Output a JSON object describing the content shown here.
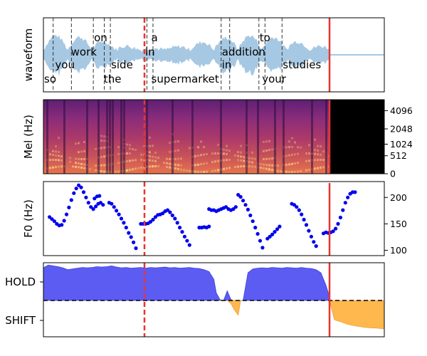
{
  "chart_data": [
    {
      "type": "line",
      "panel": "waveform",
      "ylabel": "waveform",
      "words": [
        {
          "text": "so",
          "t": 0.0,
          "row": 3
        },
        {
          "text": "you",
          "t": 0.9,
          "row": 2
        },
        {
          "text": "work",
          "t": 2.2,
          "row": 1
        },
        {
          "text": "on",
          "t": 4.1,
          "row": 0
        },
        {
          "text": "the",
          "t": 4.9,
          "row": 3
        },
        {
          "text": "side",
          "t": 5.5,
          "row": 2
        },
        {
          "text": "in",
          "t": 8.3,
          "row": 1
        },
        {
          "text": "a",
          "t": 8.8,
          "row": 0
        },
        {
          "text": "supermarket",
          "t": 8.8,
          "row": 3
        },
        {
          "text": "in",
          "t": 14.6,
          "row": 2
        },
        {
          "text": "addition",
          "t": 14.6,
          "row": 1
        },
        {
          "text": "to",
          "t": 17.7,
          "row": 0
        },
        {
          "text": "your",
          "t": 17.9,
          "row": 3
        },
        {
          "text": "studies",
          "t": 19.6,
          "row": 2
        }
      ],
      "word_boundaries": [
        0.8,
        2.3,
        4.1,
        5.0,
        5.5,
        8.5,
        9.0,
        14.6,
        15.3,
        17.7,
        18.2,
        19.6
      ],
      "current_time": 8.3,
      "end_time": 23.5,
      "x_range": [
        0,
        28.0
      ]
    },
    {
      "type": "heatmap",
      "panel": "mel",
      "ylabel": "Mel (Hz)",
      "y_ticks": [
        "4096",
        "2048",
        "1024",
        "512",
        "0"
      ],
      "y_tick_hz": [
        4096,
        2048,
        1024,
        512,
        0
      ],
      "current_time": 8.3,
      "end_time": 23.5
    },
    {
      "type": "scatter",
      "panel": "f0",
      "ylabel": "F0 (Hz)",
      "ylim": [
        90,
        230
      ],
      "y_ticks": [
        "100",
        "150",
        "200"
      ],
      "y_tick_values": [
        100,
        150,
        200
      ],
      "segments": [
        [
          [
            0.5,
            163
          ],
          [
            0.7,
            159
          ],
          [
            0.9,
            155
          ],
          [
            1.1,
            150
          ],
          [
            1.3,
            147
          ],
          [
            1.5,
            148
          ],
          [
            1.7,
            156
          ],
          [
            1.9,
            168
          ],
          [
            2.1,
            181
          ],
          [
            2.3,
            195
          ],
          [
            2.5,
            208
          ],
          [
            2.7,
            217
          ],
          [
            2.9,
            223
          ],
          [
            3.1,
            219
          ],
          [
            3.3,
            210
          ],
          [
            3.5,
            200
          ],
          [
            3.7,
            190
          ],
          [
            3.9,
            182
          ],
          [
            4.1,
            178
          ],
          [
            4.3,
            183
          ],
          [
            4.5,
            188
          ],
          [
            4.7,
            190
          ],
          [
            4.9,
            186
          ]
        ],
        [
          [
            4.2,
            198
          ],
          [
            4.4,
            202
          ],
          [
            4.6,
            203
          ]
        ],
        [
          [
            5.4,
            190
          ],
          [
            5.6,
            188
          ],
          [
            5.8,
            182
          ],
          [
            6.0,
            175
          ],
          [
            6.2,
            168
          ],
          [
            6.4,
            160
          ],
          [
            6.6,
            152
          ],
          [
            6.8,
            143
          ],
          [
            7.0,
            133
          ],
          [
            7.2,
            125
          ],
          [
            7.4,
            115
          ],
          [
            7.6,
            104
          ]
        ],
        [
          [
            8.0,
            150
          ],
          [
            8.2,
            150
          ],
          [
            8.4,
            150
          ],
          [
            8.6,
            151
          ],
          [
            8.8,
            154
          ],
          [
            9.0,
            158
          ],
          [
            9.2,
            163
          ],
          [
            9.4,
            167
          ],
          [
            9.6,
            168
          ],
          [
            9.8,
            170
          ],
          [
            10.0,
            174
          ],
          [
            10.2,
            176
          ],
          [
            10.4,
            172
          ],
          [
            10.6,
            166
          ],
          [
            10.8,
            160
          ],
          [
            11.0,
            152
          ],
          [
            11.2,
            143
          ],
          [
            11.4,
            135
          ],
          [
            11.6,
            126
          ],
          [
            11.8,
            118
          ],
          [
            12.0,
            110
          ]
        ],
        [
          [
            12.8,
            143
          ],
          [
            13.0,
            143
          ],
          [
            13.2,
            144
          ],
          [
            13.4,
            143
          ],
          [
            13.6,
            145
          ]
        ],
        [
          [
            13.6,
            178
          ],
          [
            13.8,
            176
          ],
          [
            14.0,
            176
          ],
          [
            14.2,
            174
          ],
          [
            14.4,
            176
          ],
          [
            14.6,
            178
          ],
          [
            14.8,
            180
          ],
          [
            15.0,
            182
          ],
          [
            15.2,
            178
          ],
          [
            15.4,
            176
          ],
          [
            15.6,
            178
          ],
          [
            15.8,
            182
          ]
        ],
        [
          [
            16.0,
            205
          ],
          [
            16.2,
            201
          ],
          [
            16.4,
            194
          ],
          [
            16.6,
            186
          ],
          [
            16.8,
            177
          ],
          [
            17.0,
            166
          ],
          [
            17.2,
            155
          ],
          [
            17.4,
            143
          ],
          [
            17.6,
            131
          ],
          [
            17.8,
            118
          ],
          [
            18.0,
            105
          ]
        ],
        [
          [
            18.4,
            122
          ],
          [
            18.6,
            126
          ],
          [
            18.8,
            130
          ],
          [
            19.0,
            135
          ],
          [
            19.2,
            140
          ],
          [
            19.4,
            145
          ]
        ],
        [
          [
            20.4,
            188
          ],
          [
            20.6,
            186
          ],
          [
            20.8,
            182
          ],
          [
            21.0,
            176
          ],
          [
            21.2,
            168
          ],
          [
            21.4,
            158
          ],
          [
            21.6,
            148
          ],
          [
            21.8,
            137
          ],
          [
            22.0,
            126
          ],
          [
            22.2,
            116
          ],
          [
            22.4,
            108
          ]
        ],
        [
          [
            23.0,
            132
          ],
          [
            23.2,
            134
          ],
          [
            23.4,
            133
          ],
          [
            23.6,
            134
          ],
          [
            23.8,
            136
          ],
          [
            24.0,
            141
          ],
          [
            24.2,
            150
          ],
          [
            24.4,
            162
          ],
          [
            24.6,
            176
          ],
          [
            24.8,
            190
          ],
          [
            25.0,
            200
          ],
          [
            25.2,
            207
          ],
          [
            25.4,
            210
          ],
          [
            25.6,
            210
          ]
        ]
      ],
      "current_time": 8.3,
      "end_time": 23.5
    },
    {
      "type": "area",
      "panel": "turn-taking",
      "categories": [
        "HOLD",
        "SHIFT"
      ],
      "series": [
        {
          "name": "HOLD",
          "color": "#5c5cf3",
          "x": [
            0.0,
            0.4,
            0.8,
            1.2,
            1.6,
            2.0,
            2.4,
            2.8,
            3.2,
            3.6,
            4.0,
            4.4,
            4.8,
            5.2,
            5.6,
            6.0,
            6.4,
            6.8,
            7.2,
            7.6,
            8.0,
            8.4,
            8.8,
            9.2,
            9.6,
            10.0,
            10.4,
            10.8,
            11.2,
            11.6,
            12.0,
            12.4,
            12.8,
            13.2,
            13.6,
            14.0,
            14.2,
            14.5,
            14.8,
            15.1,
            15.4,
            15.6,
            15.8,
            16.0,
            16.4,
            16.8,
            17.2,
            17.6,
            18.0,
            18.4,
            18.8,
            19.2,
            19.6,
            20.0,
            20.4,
            20.8,
            21.2,
            21.6,
            22.0,
            22.4,
            22.8,
            23.2,
            23.5
          ],
          "values": [
            0.85,
            0.92,
            0.9,
            0.88,
            0.85,
            0.8,
            0.82,
            0.84,
            0.86,
            0.85,
            0.86,
            0.88,
            0.87,
            0.88,
            0.9,
            0.87,
            0.85,
            0.86,
            0.84,
            0.85,
            0.86,
            0.84,
            0.86,
            0.85,
            0.86,
            0.87,
            0.85,
            0.86,
            0.84,
            0.85,
            0.86,
            0.84,
            0.83,
            0.8,
            0.75,
            0.55,
            0.2,
            0.02,
            0.0,
            0.25,
            0.02,
            0.0,
            0.0,
            0.0,
            0.0,
            0.72,
            0.82,
            0.84,
            0.85,
            0.84,
            0.86,
            0.85,
            0.84,
            0.86,
            0.85,
            0.84,
            0.86,
            0.84,
            0.83,
            0.8,
            0.72,
            0.4,
            0.1
          ]
        },
        {
          "name": "SHIFT",
          "color": "#ffb84d",
          "x": [
            15.1,
            15.4,
            15.7,
            16.0,
            16.2,
            23.5,
            23.9,
            24.4,
            25.0,
            25.6,
            26.2,
            26.8,
            27.4,
            28.0
          ],
          "values": [
            0.0,
            0.08,
            0.25,
            0.38,
            0.0,
            0.0,
            0.5,
            0.55,
            0.62,
            0.66,
            0.69,
            0.71,
            0.72,
            0.74
          ]
        }
      ],
      "current_time": 8.3,
      "end_time": 23.5
    }
  ]
}
